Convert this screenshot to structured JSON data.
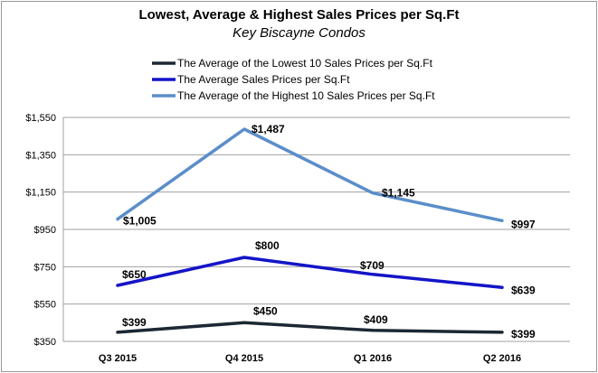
{
  "chart_data": {
    "type": "line",
    "title": "Lowest, Average & Highest Sales Prices per Sq.Ft",
    "subtitle": "Key Biscayne Condos",
    "categories": [
      "Q3 2015",
      "Q4 2015",
      "Q1 2016",
      "Q2 2016"
    ],
    "ylim": [
      350,
      1550
    ],
    "yticks": [
      350,
      550,
      750,
      950,
      1150,
      1350,
      1550
    ],
    "ytick_labels": [
      "$350",
      "$550",
      "$750",
      "$950",
      "$1,150",
      "$1,350",
      "$1,550"
    ],
    "grid": true,
    "legend_position": "top",
    "series": [
      {
        "name": "The Average of the Lowest 10 Sales Prices per Sq.Ft",
        "color": "#1c2833",
        "values": [
          399,
          450,
          409,
          399
        ],
        "labels": [
          "$399",
          "$450",
          "$409",
          "$399"
        ]
      },
      {
        "name": "The Average Sales Prices per Sq.Ft",
        "color": "#1414c8",
        "values": [
          650,
          800,
          709,
          639
        ],
        "labels": [
          "$650",
          "$800",
          "$709",
          "$639"
        ]
      },
      {
        "name": "The Average of the Highest 10 Sales Prices per Sq.Ft",
        "color": "#5b8ec9",
        "values": [
          1005,
          1487,
          1145,
          997
        ],
        "labels": [
          "$1,005",
          "$1,487",
          "$1,145",
          "$997"
        ]
      }
    ]
  }
}
